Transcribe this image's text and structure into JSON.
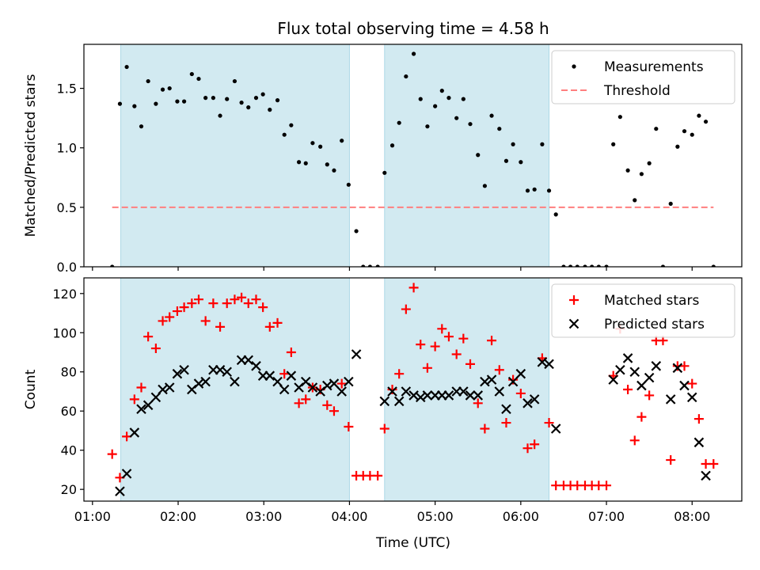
{
  "figure": {
    "title": "Flux total observing time = 4.58 h",
    "xlabel": "Time (UTC)",
    "x_tick_labels": [
      "01:00",
      "02:00",
      "03:00",
      "04:00",
      "05:00",
      "06:00",
      "07:00",
      "08:00"
    ]
  },
  "chart_data": [
    {
      "type": "scatter",
      "ylabel": "Matched/Predicted stars",
      "xlim_hours": [
        0.9,
        8.58
      ],
      "ylim": [
        0,
        1.87
      ],
      "y_ticks": [
        0.0,
        0.5,
        1.0,
        1.5
      ],
      "y_tick_labels": [
        "0.0",
        "0.5",
        "1.0",
        "1.5"
      ],
      "shaded_intervals": [
        [
          1.33,
          4.0
        ],
        [
          4.41,
          6.33
        ]
      ],
      "shade_color": "#add8e6",
      "legend": {
        "placement": "top-right",
        "entries": [
          "Measurements",
          "Threshold"
        ]
      },
      "series": [
        {
          "name": "Measurements",
          "kind": "points",
          "color": "#000000",
          "x": [
            1.23,
            1.32,
            1.4,
            1.49,
            1.57,
            1.65,
            1.74,
            1.82,
            1.9,
            1.99,
            2.07,
            2.16,
            2.24,
            2.32,
            2.41,
            2.49,
            2.57,
            2.66,
            2.74,
            2.82,
            2.91,
            2.99,
            3.07,
            3.16,
            3.24,
            3.32,
            3.41,
            3.49,
            3.57,
            3.66,
            3.74,
            3.82,
            3.91,
            3.99,
            4.08,
            4.16,
            4.24,
            4.33,
            4.41,
            4.5,
            4.58,
            4.66,
            4.75,
            4.83,
            4.91,
            5.0,
            5.08,
            5.16,
            5.25,
            5.33,
            5.41,
            5.5,
            5.58,
            5.66,
            5.75,
            5.83,
            5.91,
            6.0,
            6.08,
            6.16,
            6.25,
            6.33,
            6.41,
            6.5,
            6.58,
            6.66,
            6.75,
            6.83,
            6.91,
            7.0,
            7.08,
            7.16,
            7.25,
            7.33,
            7.41,
            7.5,
            7.58,
            7.66,
            7.75,
            7.83,
            7.91,
            8.0,
            8.08,
            8.16,
            8.25
          ],
          "y": [
            0.0,
            1.37,
            1.68,
            1.35,
            1.18,
            1.56,
            1.37,
            1.49,
            1.5,
            1.39,
            1.39,
            1.62,
            1.58,
            1.42,
            1.42,
            1.27,
            1.41,
            1.56,
            1.38,
            1.34,
            1.42,
            1.45,
            1.32,
            1.4,
            1.11,
            1.19,
            0.88,
            0.87,
            1.04,
            1.01,
            0.86,
            0.81,
            1.06,
            0.69,
            0.3,
            0.0,
            0.0,
            0.0,
            0.79,
            1.02,
            1.21,
            1.6,
            1.79,
            1.41,
            1.18,
            1.35,
            1.48,
            1.42,
            1.25,
            1.41,
            1.2,
            0.94,
            0.68,
            1.27,
            1.16,
            0.89,
            1.03,
            0.88,
            0.64,
            0.65,
            1.03,
            0.64,
            0.44,
            0.0,
            0.0,
            0.0,
            0.0,
            0.0,
            0.0,
            0.0,
            1.03,
            1.26,
            0.81,
            0.56,
            0.78,
            0.87,
            1.16,
            0.0,
            0.53,
            1.01,
            1.14,
            1.11,
            1.27,
            1.22,
            0.0
          ]
        },
        {
          "name": "Threshold",
          "kind": "dashed-line",
          "color": "#ff7f7f",
          "x": [
            1.23,
            8.25
          ],
          "y": [
            0.5,
            0.5
          ]
        }
      ]
    },
    {
      "type": "scatter",
      "ylabel": "Count",
      "xlim_hours": [
        0.9,
        8.58
      ],
      "ylim": [
        14,
        128
      ],
      "y_ticks": [
        20,
        40,
        60,
        80,
        100,
        120
      ],
      "y_tick_labels": [
        "20",
        "40",
        "60",
        "80",
        "100",
        "120"
      ],
      "shaded_intervals": [
        [
          1.33,
          4.0
        ],
        [
          4.41,
          6.33
        ]
      ],
      "shade_color": "#add8e6",
      "legend": {
        "placement": "top-right",
        "entries": [
          "Matched stars",
          "Predicted stars"
        ]
      },
      "series": [
        {
          "name": "Matched stars",
          "kind": "plus",
          "color": "#ff0000",
          "x": [
            1.23,
            1.32,
            1.4,
            1.49,
            1.57,
            1.65,
            1.74,
            1.82,
            1.9,
            1.99,
            2.07,
            2.16,
            2.24,
            2.32,
            2.41,
            2.49,
            2.57,
            2.66,
            2.74,
            2.82,
            2.91,
            2.99,
            3.07,
            3.16,
            3.24,
            3.32,
            3.41,
            3.49,
            3.57,
            3.66,
            3.74,
            3.82,
            3.91,
            3.99,
            4.08,
            4.16,
            4.24,
            4.33,
            4.41,
            4.5,
            4.58,
            4.66,
            4.75,
            4.83,
            4.91,
            5.0,
            5.08,
            5.16,
            5.25,
            5.33,
            5.41,
            5.5,
            5.58,
            5.66,
            5.75,
            5.83,
            5.91,
            6.0,
            6.08,
            6.16,
            6.25,
            6.33,
            6.41,
            6.5,
            6.58,
            6.66,
            6.75,
            6.83,
            6.91,
            7.0,
            7.08,
            7.16,
            7.25,
            7.33,
            7.41,
            7.5,
            7.58,
            7.66,
            7.75,
            7.83,
            7.91,
            8.0,
            8.08,
            8.16,
            8.25
          ],
          "y": [
            38,
            26,
            47,
            66,
            72,
            98,
            92,
            106,
            108,
            111,
            113,
            115,
            117,
            106,
            115,
            103,
            115,
            117,
            118,
            115,
            117,
            113,
            103,
            105,
            79,
            90,
            64,
            66,
            72,
            71,
            63,
            60,
            74,
            52,
            27,
            27,
            27,
            27,
            51,
            71,
            79,
            112,
            123,
            94,
            82,
            93,
            102,
            98,
            89,
            97,
            84,
            64,
            51,
            96,
            81,
            54,
            76,
            69,
            41,
            43,
            87,
            54,
            22,
            22,
            22,
            22,
            22,
            22,
            22,
            22,
            78,
            102,
            71,
            45,
            57,
            68,
            96,
            96,
            35,
            83,
            83,
            74,
            56,
            33,
            33
          ]
        },
        {
          "name": "Predicted stars",
          "kind": "cross",
          "color": "#000000",
          "x": [
            1.32,
            1.4,
            1.49,
            1.57,
            1.65,
            1.74,
            1.82,
            1.9,
            1.99,
            2.07,
            2.16,
            2.24,
            2.32,
            2.41,
            2.49,
            2.57,
            2.66,
            2.74,
            2.82,
            2.91,
            2.99,
            3.07,
            3.16,
            3.24,
            3.32,
            3.41,
            3.49,
            3.57,
            3.66,
            3.74,
            3.82,
            3.91,
            3.99,
            4.08,
            4.41,
            4.5,
            4.58,
            4.66,
            4.75,
            4.83,
            4.91,
            5.0,
            5.08,
            5.16,
            5.25,
            5.33,
            5.41,
            5.5,
            5.58,
            5.66,
            5.75,
            5.83,
            5.91,
            6.0,
            6.08,
            6.16,
            6.25,
            6.33,
            6.41,
            7.08,
            7.16,
            7.25,
            7.33,
            7.41,
            7.5,
            7.58,
            7.75,
            7.83,
            7.91,
            8.0,
            8.08,
            8.16
          ],
          "y": [
            19,
            28,
            49,
            61,
            63,
            67,
            71,
            72,
            79,
            81,
            71,
            74,
            75,
            81,
            81,
            80,
            75,
            86,
            86,
            83,
            78,
            78,
            75,
            71,
            78,
            72,
            75,
            72,
            70,
            73,
            74,
            70,
            75,
            89,
            65,
            70,
            65,
            70,
            68,
            67,
            68,
            68,
            68,
            68,
            70,
            70,
            68,
            68,
            75,
            76,
            70,
            61,
            75,
            79,
            64,
            66,
            85,
            84,
            51,
            76,
            81,
            87,
            80,
            73,
            77,
            83,
            66,
            82,
            73,
            67,
            44,
            27
          ]
        }
      ]
    }
  ]
}
